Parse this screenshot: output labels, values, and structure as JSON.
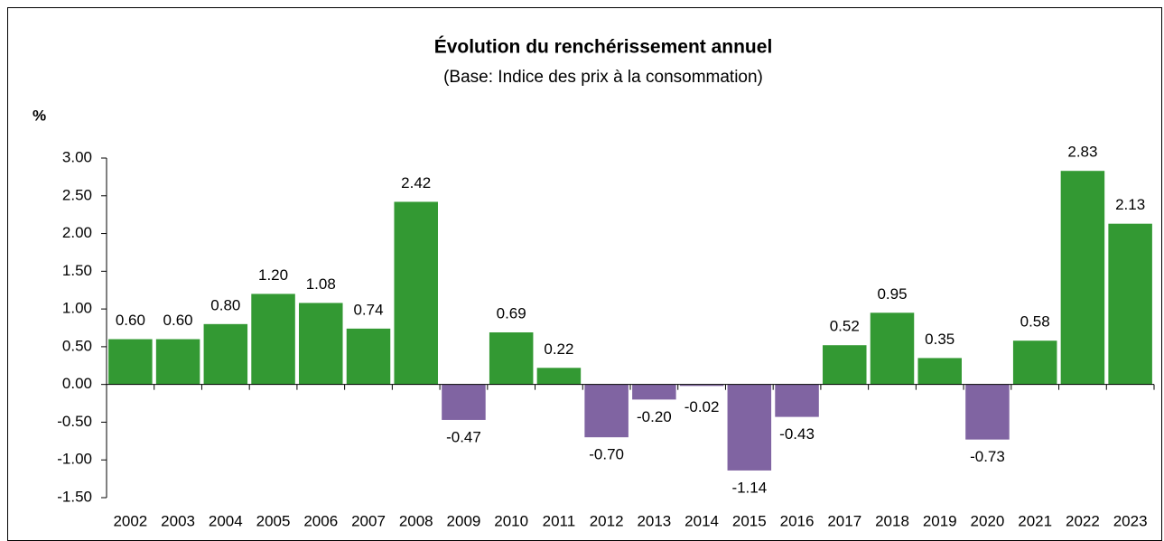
{
  "chart_data": {
    "type": "bar",
    "title": "Évolution du renchérissement annuel",
    "subtitle": "(Base: Indice des prix à la consommation)",
    "y_label": "%",
    "categories": [
      "2002",
      "2003",
      "2004",
      "2005",
      "2006",
      "2007",
      "2008",
      "2009",
      "2010",
      "2011",
      "2012",
      "2013",
      "2014",
      "2015",
      "2016",
      "2017",
      "2018",
      "2019",
      "2020",
      "2021",
      "2022",
      "2023"
    ],
    "values": [
      0.6,
      0.6,
      0.8,
      1.2,
      1.08,
      0.74,
      2.42,
      -0.47,
      0.69,
      0.22,
      -0.7,
      -0.2,
      -0.02,
      -1.14,
      -0.43,
      0.52,
      0.95,
      0.35,
      -0.73,
      0.58,
      2.83,
      2.13
    ],
    "value_labels": [
      "0.60",
      "0.60",
      "0.80",
      "1.20",
      "1.08",
      "0.74",
      "2.42",
      "-0.47",
      "0.69",
      "0.22",
      "-0.70",
      "-0.20",
      "-0.02",
      "-1.14",
      "-0.43",
      "0.52",
      "0.95",
      "0.35",
      "-0.73",
      "0.58",
      "2.83",
      "2.13"
    ],
    "color": "#339933",
    "negative_color": "#8064a2",
    "ylim": [
      -1.5,
      3
    ],
    "yticks": [
      {
        "value": -1.5,
        "label": "-1.50"
      },
      {
        "value": -1,
        "label": "-1.00"
      },
      {
        "value": -0.5,
        "label": "-0.50"
      },
      {
        "value": 0,
        "label": "0.00"
      },
      {
        "value": 0.5,
        "label": "0.50"
      },
      {
        "value": 1,
        "label": "1.00"
      },
      {
        "value": 1.5,
        "label": "1.50"
      },
      {
        "value": 2,
        "label": "2.00"
      },
      {
        "value": 2.5,
        "label": "2.50"
      },
      {
        "value": 3,
        "label": "3.00"
      }
    ],
    "grid": false
  }
}
